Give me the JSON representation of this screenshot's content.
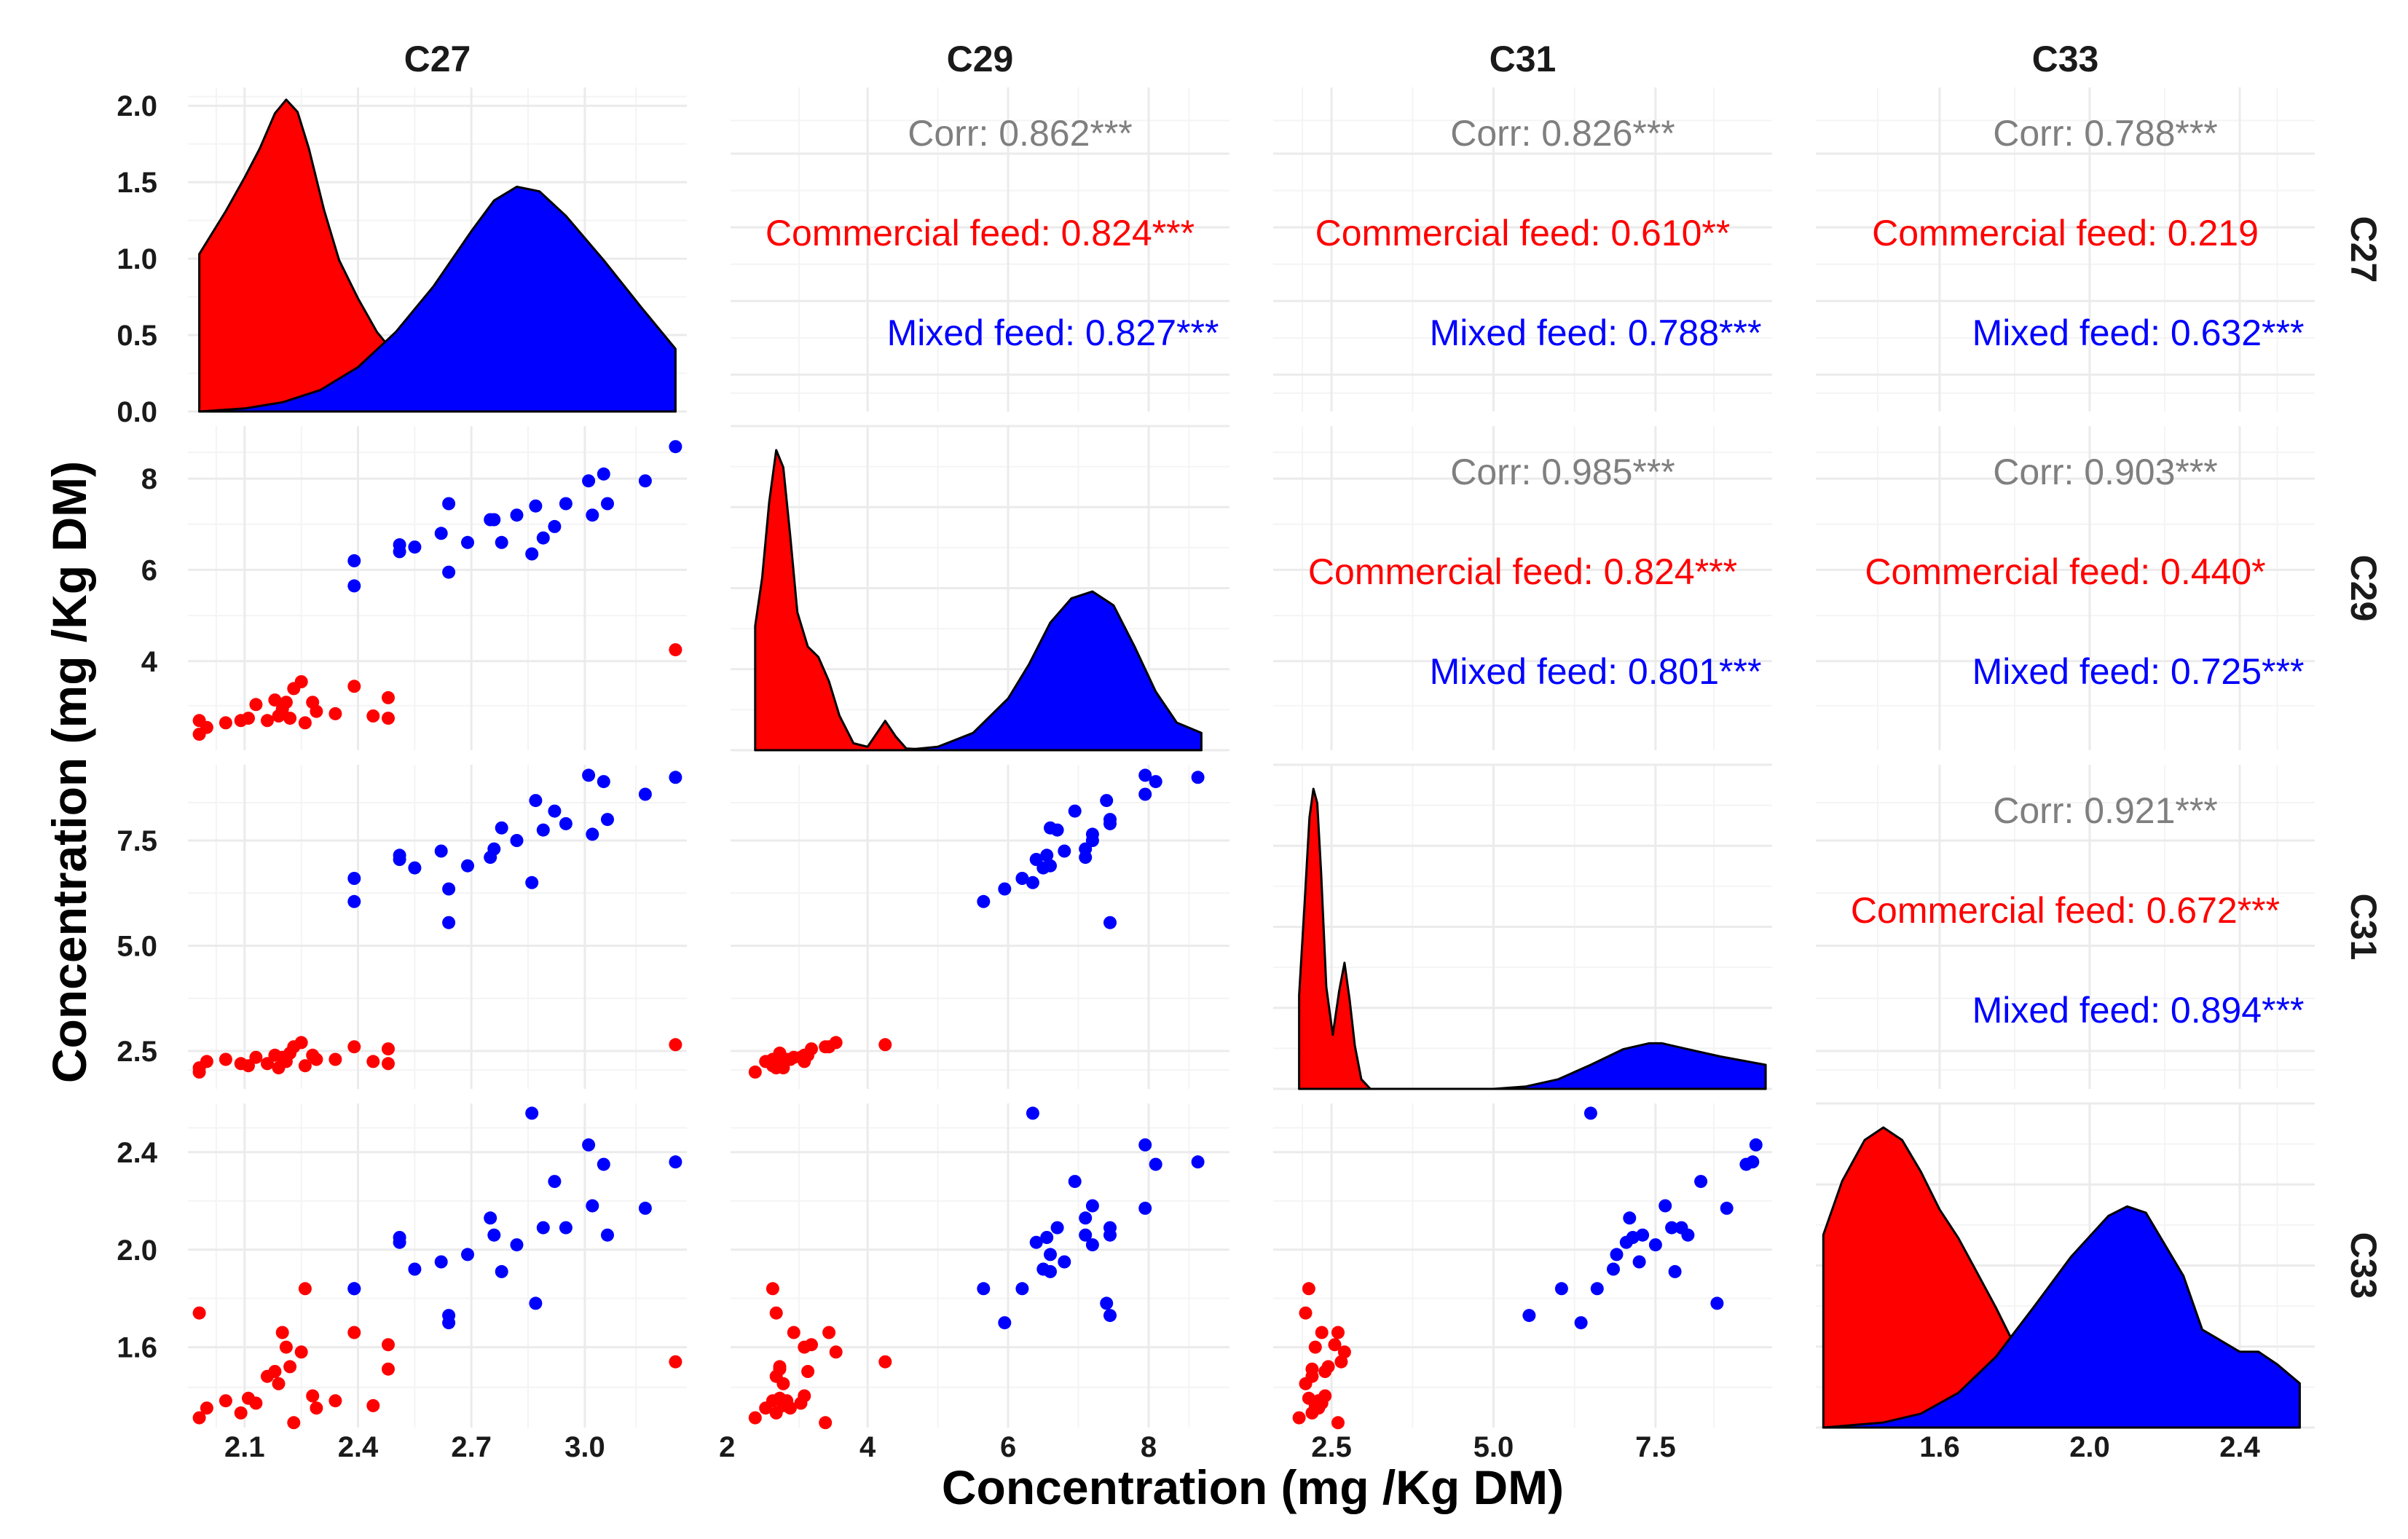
{
  "chart_data": {
    "type": "scatter",
    "plot_kind": "pairs-matrix (scatter lower, density diagonal, correlation upper)",
    "xlabel": "Concentration (mg /Kg DM)",
    "ylabel": "Concentration (mg /Kg DM)",
    "colors": {
      "commercial": "#ff0000",
      "mixed": "#0000ff",
      "corr": "#7f7f7f",
      "grid": "#ebebeb"
    },
    "variables": [
      {
        "name": "C27",
        "range": [
          1.95,
          3.27
        ],
        "ticks": [
          2.1,
          2.4,
          2.7,
          3.0
        ],
        "tick_labels": [
          "2.1",
          "2.4",
          "2.7",
          "3.0"
        ]
      },
      {
        "name": "C29",
        "range": [
          2.05,
          9.15
        ],
        "ticks": [
          2,
          4,
          6,
          8
        ],
        "tick_labels": [
          "2",
          "4",
          "6",
          "8"
        ]
      },
      {
        "name": "C31",
        "range": [
          1.6,
          9.3
        ],
        "ticks": [
          2.5,
          5.0,
          7.5
        ],
        "tick_labels": [
          "2.5",
          "5.0",
          "7.5"
        ]
      },
      {
        "name": "C33",
        "range": [
          1.27,
          2.6
        ],
        "ticks": [
          1.6,
          2.0,
          2.4
        ],
        "tick_labels": [
          "1.6",
          "2.0",
          "2.4"
        ]
      }
    ],
    "density_axis": {
      "range": [
        0,
        2.12
      ],
      "ticks": [
        0,
        0.5,
        1.0,
        1.5,
        2.0
      ],
      "tick_labels": [
        "0.0",
        "0.5",
        "1.0",
        "1.5",
        "2.0"
      ]
    },
    "groups": [
      {
        "name": "Commercial feed",
        "color": "#ff0000",
        "C27": [
          1.98,
          1.98,
          2.0,
          2.05,
          2.09,
          2.11,
          2.13,
          2.16,
          2.18,
          2.19,
          2.2,
          2.21,
          2.22,
          2.23,
          2.25,
          2.26,
          2.28,
          2.29,
          2.34,
          2.39,
          2.44,
          2.48,
          2.48,
          3.24
        ],
        "C29": [
          2.7,
          2.4,
          2.55,
          2.65,
          2.7,
          2.75,
          3.05,
          2.7,
          3.15,
          2.8,
          2.95,
          3.1,
          2.75,
          3.4,
          3.55,
          2.65,
          3.1,
          2.9,
          2.85,
          3.45,
          2.8,
          3.2,
          2.75,
          4.25
        ],
        "C31": [
          2.1,
          2.0,
          2.25,
          2.3,
          2.2,
          2.15,
          2.35,
          2.2,
          2.4,
          2.1,
          2.35,
          2.25,
          2.45,
          2.6,
          2.7,
          2.15,
          2.4,
          2.3,
          2.3,
          2.6,
          2.25,
          2.55,
          2.2,
          2.65
        ],
        "C33": [
          1.74,
          1.31,
          1.35,
          1.38,
          1.33,
          1.39,
          1.37,
          1.48,
          1.5,
          1.45,
          1.66,
          1.6,
          1.52,
          1.29,
          1.58,
          1.84,
          1.4,
          1.35,
          1.38,
          1.66,
          1.36,
          1.61,
          1.51,
          1.54
        ]
      },
      {
        "name": "Mixed feed",
        "color": "#0000ff",
        "C27": [
          2.39,
          2.39,
          2.51,
          2.51,
          2.55,
          2.62,
          2.64,
          2.64,
          2.69,
          2.75,
          2.76,
          2.78,
          2.82,
          2.86,
          2.87,
          2.89,
          2.92,
          2.95,
          3.01,
          3.02,
          3.05,
          3.06,
          3.16,
          3.24
        ],
        "C29": [
          5.65,
          6.2,
          6.4,
          6.55,
          6.5,
          6.8,
          7.45,
          5.95,
          6.6,
          7.1,
          7.1,
          6.6,
          7.2,
          6.35,
          7.4,
          6.7,
          6.95,
          7.45,
          7.95,
          7.2,
          8.1,
          7.45,
          7.95,
          8.7
        ],
        "C31": [
          6.05,
          6.6,
          7.05,
          7.15,
          6.85,
          7.25,
          5.55,
          6.35,
          6.9,
          7.1,
          7.3,
          7.8,
          7.5,
          6.5,
          8.45,
          7.75,
          8.2,
          7.9,
          9.05,
          7.65,
          8.9,
          8.0,
          8.6,
          9.0
        ],
        "C33": [
          1.84,
          1.84,
          2.03,
          2.05,
          1.92,
          1.95,
          1.73,
          1.7,
          1.98,
          2.13,
          2.06,
          1.91,
          2.02,
          2.56,
          1.78,
          2.09,
          2.28,
          2.09,
          2.43,
          2.18,
          2.35,
          2.06,
          2.17,
          2.36
        ]
      }
    ],
    "density_curves": [
      {
        "variable": "C27",
        "commercial": {
          "x": [
            1.98,
            2.05,
            2.1,
            2.14,
            2.18,
            2.21,
            2.24,
            2.27,
            2.31,
            2.35,
            2.4,
            2.45,
            2.52,
            2.6,
            2.7,
            2.85,
            3.0,
            3.15,
            3.24
          ],
          "y": [
            1.03,
            1.31,
            1.53,
            1.72,
            1.95,
            2.04,
            1.96,
            1.72,
            1.32,
            0.99,
            0.74,
            0.52,
            0.31,
            0.15,
            0.06,
            0.02,
            0.01,
            0.005,
            0.0
          ]
        },
        "mixed": {
          "x": [
            1.98,
            2.1,
            2.2,
            2.3,
            2.4,
            2.5,
            2.6,
            2.7,
            2.76,
            2.82,
            2.88,
            2.95,
            3.05,
            3.15,
            3.24
          ],
          "y": [
            0.0,
            0.02,
            0.06,
            0.14,
            0.29,
            0.52,
            0.82,
            1.18,
            1.38,
            1.47,
            1.44,
            1.28,
            0.99,
            0.68,
            0.41
          ]
        }
      },
      {
        "variable": "C29",
        "commercial": {
          "x": [
            2.4,
            2.5,
            2.6,
            2.7,
            2.8,
            2.9,
            3.0,
            3.15,
            3.3,
            3.45,
            3.6,
            3.8,
            4.0,
            4.1,
            4.25,
            4.4,
            4.55,
            5.0,
            8.75
          ],
          "y": [
            0.36,
            0.5,
            0.72,
            0.87,
            0.82,
            0.62,
            0.4,
            0.3,
            0.27,
            0.2,
            0.1,
            0.02,
            0.01,
            0.04,
            0.085,
            0.04,
            0.005,
            0.0,
            0.0
          ]
        },
        "mixed": {
          "x": [
            2.4,
            4.5,
            5.0,
            5.5,
            6.0,
            6.3,
            6.6,
            6.9,
            7.2,
            7.5,
            7.8,
            8.1,
            8.4,
            8.75
          ],
          "y": [
            0.0,
            0.0,
            0.01,
            0.05,
            0.15,
            0.25,
            0.37,
            0.44,
            0.46,
            0.42,
            0.3,
            0.17,
            0.08,
            0.05
          ]
        }
      },
      {
        "variable": "C31",
        "commercial": {
          "x": [
            2.0,
            2.08,
            2.16,
            2.22,
            2.28,
            2.34,
            2.42,
            2.52,
            2.62,
            2.7,
            2.78,
            2.86,
            2.96,
            3.1,
            9.2
          ],
          "y": [
            0.78,
            1.5,
            2.26,
            2.5,
            2.38,
            1.8,
            0.85,
            0.45,
            0.82,
            1.05,
            0.74,
            0.36,
            0.08,
            0.0,
            0.0
          ]
        },
        "mixed": {
          "x": [
            2.0,
            5.0,
            5.5,
            6.0,
            6.5,
            7.0,
            7.4,
            7.6,
            8.0,
            8.5,
            9.0,
            9.2
          ],
          "y": [
            0.0,
            0.0,
            0.02,
            0.08,
            0.2,
            0.33,
            0.38,
            0.38,
            0.33,
            0.27,
            0.22,
            0.2
          ]
        }
      },
      {
        "variable": "C33",
        "commercial": {
          "x": [
            1.29,
            1.34,
            1.4,
            1.45,
            1.5,
            1.55,
            1.6,
            1.65,
            1.7,
            1.75,
            1.8,
            1.85,
            1.9,
            2.0,
            2.1,
            2.56
          ],
          "y": [
            3.05,
            3.9,
            4.55,
            4.75,
            4.55,
            4.05,
            3.45,
            3.0,
            2.45,
            1.9,
            1.3,
            0.8,
            0.45,
            0.15,
            0.04,
            0.0
          ]
        },
        "mixed": {
          "x": [
            1.29,
            1.45,
            1.55,
            1.65,
            1.75,
            1.85,
            1.95,
            2.05,
            2.1,
            2.15,
            2.25,
            2.3,
            2.4,
            2.45,
            2.5,
            2.56
          ],
          "y": [
            0.0,
            0.08,
            0.22,
            0.55,
            1.12,
            1.9,
            2.7,
            3.35,
            3.5,
            3.4,
            2.4,
            1.55,
            1.2,
            1.2,
            1.0,
            0.7
          ]
        }
      }
    ],
    "correlations": [
      {
        "row": "C27",
        "col": "C29",
        "corr": "Corr: 0.862***",
        "commercial": "Commercial feed: 0.824***",
        "mixed": "Mixed feed: 0.827***"
      },
      {
        "row": "C27",
        "col": "C31",
        "corr": "Corr: 0.826***",
        "commercial": "Commercial feed: 0.610**",
        "mixed": "Mixed feed: 0.788***"
      },
      {
        "row": "C27",
        "col": "C33",
        "corr": "Corr: 0.788***",
        "commercial": "Commercial feed: 0.219",
        "mixed": "Mixed feed: 0.632***"
      },
      {
        "row": "C29",
        "col": "C31",
        "corr": "Corr: 0.985***",
        "commercial": "Commercial feed: 0.824***",
        "mixed": "Mixed feed: 0.801***"
      },
      {
        "row": "C29",
        "col": "C33",
        "corr": "Corr: 0.903***",
        "commercial": "Commercial feed: 0.440*",
        "mixed": "Mixed feed: 0.725***"
      },
      {
        "row": "C31",
        "col": "C33",
        "corr": "Corr: 0.921***",
        "commercial": "Commercial feed: 0.672***",
        "mixed": "Mixed feed: 0.894***"
      }
    ]
  }
}
